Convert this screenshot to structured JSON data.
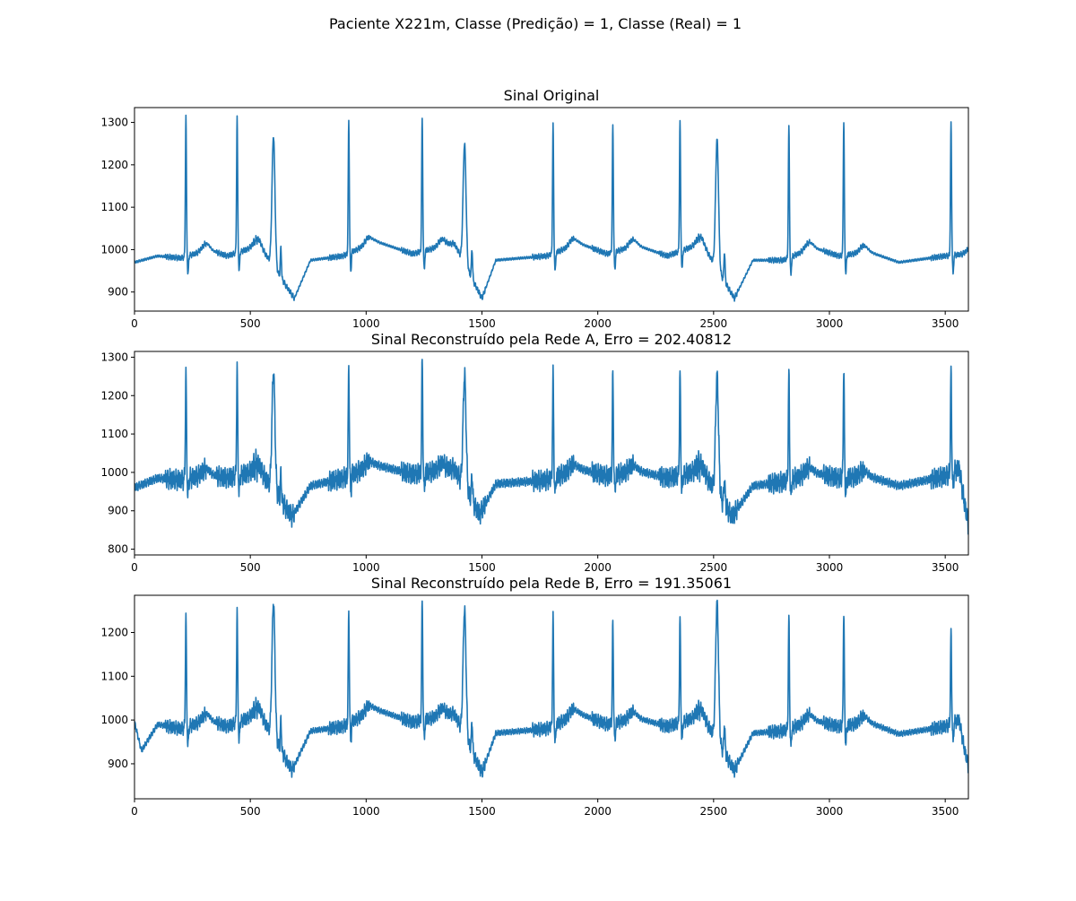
{
  "figure": {
    "suptitle": "Paciente X221m, Classe (Predição) = 1, Classe (Real) = 1"
  },
  "colors": {
    "line": "#1f77b4",
    "axes": "#000000",
    "background": "#ffffff"
  },
  "chart_data": [
    {
      "type": "line",
      "title": "Sinal Original",
      "xlabel": "",
      "ylabel": "",
      "xlim": [
        0,
        3600
      ],
      "ylim": [
        855,
        1335
      ],
      "xticks": [
        0,
        500,
        1000,
        1500,
        2000,
        2500,
        3000,
        3500
      ],
      "yticks": [
        900,
        1000,
        1100,
        1200,
        1300
      ],
      "grid": false,
      "series": [
        {
          "beats": [
            {
              "x": 222,
              "peak": 1313,
              "kind": "normal"
            },
            {
              "x": 443,
              "peak": 1311,
              "kind": "normal"
            },
            {
              "x": 600,
              "peak": 1268,
              "kind": "ectopic"
            },
            {
              "x": 925,
              "peak": 1303,
              "kind": "normal"
            },
            {
              "x": 1242,
              "peak": 1309,
              "kind": "normal"
            },
            {
              "x": 1425,
              "peak": 1249,
              "kind": "ectopic"
            },
            {
              "x": 1807,
              "peak": 1292,
              "kind": "normal"
            },
            {
              "x": 2065,
              "peak": 1291,
              "kind": "normal"
            },
            {
              "x": 2355,
              "peak": 1303,
              "kind": "normal"
            },
            {
              "x": 2515,
              "peak": 1259,
              "kind": "ectopic"
            },
            {
              "x": 2825,
              "peak": 1289,
              "kind": "normal"
            },
            {
              "x": 3062,
              "peak": 1302,
              "kind": "normal"
            },
            {
              "x": 3525,
              "peak": 1298,
              "kind": "normal"
            }
          ],
          "baseline": [
            {
              "x": 0,
              "y": 970
            },
            {
              "x": 100,
              "y": 985
            },
            {
              "x": 200,
              "y": 980
            },
            {
              "x": 320,
              "y": 1000
            },
            {
              "x": 400,
              "y": 985
            },
            {
              "x": 540,
              "y": 1010
            },
            {
              "x": 690,
              "y": 885
            },
            {
              "x": 760,
              "y": 975
            },
            {
              "x": 900,
              "y": 985
            },
            {
              "x": 1040,
              "y": 1020
            },
            {
              "x": 1200,
              "y": 990
            },
            {
              "x": 1380,
              "y": 1015
            },
            {
              "x": 1500,
              "y": 885
            },
            {
              "x": 1560,
              "y": 975
            },
            {
              "x": 1780,
              "y": 985
            },
            {
              "x": 1920,
              "y": 1015
            },
            {
              "x": 2040,
              "y": 990
            },
            {
              "x": 2170,
              "y": 1010
            },
            {
              "x": 2300,
              "y": 985
            },
            {
              "x": 2450,
              "y": 1015
            },
            {
              "x": 2590,
              "y": 885
            },
            {
              "x": 2670,
              "y": 975
            },
            {
              "x": 2800,
              "y": 975
            },
            {
              "x": 2930,
              "y": 1005
            },
            {
              "x": 3040,
              "y": 985
            },
            {
              "x": 3170,
              "y": 995
            },
            {
              "x": 3300,
              "y": 970
            },
            {
              "x": 3500,
              "y": 985
            },
            {
              "x": 3600,
              "y": 990
            }
          ],
          "noise": 3
        }
      ]
    },
    {
      "type": "line",
      "title": "Sinal Reconstruído pela Rede A, Erro = 202.40812",
      "xlabel": "",
      "ylabel": "",
      "xlim": [
        0,
        3600
      ],
      "ylim": [
        785,
        1315
      ],
      "xticks": [
        0,
        500,
        1000,
        1500,
        2000,
        2500,
        3000,
        3500
      ],
      "yticks": [
        800,
        900,
        1000,
        1100,
        1200,
        1300
      ],
      "grid": false,
      "series": [
        {
          "beats": [
            {
              "x": 222,
              "peak": 1258,
              "kind": "normal"
            },
            {
              "x": 443,
              "peak": 1270,
              "kind": "normal"
            },
            {
              "x": 600,
              "peak": 1262,
              "kind": "ectopic"
            },
            {
              "x": 925,
              "peak": 1271,
              "kind": "normal"
            },
            {
              "x": 1242,
              "peak": 1291,
              "kind": "normal"
            },
            {
              "x": 1425,
              "peak": 1253,
              "kind": "ectopic"
            },
            {
              "x": 1807,
              "peak": 1252,
              "kind": "normal"
            },
            {
              "x": 2065,
              "peak": 1251,
              "kind": "normal"
            },
            {
              "x": 2355,
              "peak": 1259,
              "kind": "normal"
            },
            {
              "x": 2515,
              "peak": 1249,
              "kind": "ectopic"
            },
            {
              "x": 2825,
              "peak": 1254,
              "kind": "normal"
            },
            {
              "x": 3062,
              "peak": 1267,
              "kind": "normal"
            },
            {
              "x": 3525,
              "peak": 1263,
              "kind": "normal"
            }
          ],
          "baseline": [
            {
              "x": 0,
              "y": 960
            },
            {
              "x": 100,
              "y": 985
            },
            {
              "x": 200,
              "y": 980
            },
            {
              "x": 320,
              "y": 995
            },
            {
              "x": 400,
              "y": 985
            },
            {
              "x": 540,
              "y": 1005
            },
            {
              "x": 680,
              "y": 885
            },
            {
              "x": 760,
              "y": 965
            },
            {
              "x": 900,
              "y": 985
            },
            {
              "x": 1040,
              "y": 1020
            },
            {
              "x": 1200,
              "y": 995
            },
            {
              "x": 1380,
              "y": 1010
            },
            {
              "x": 1490,
              "y": 890
            },
            {
              "x": 1560,
              "y": 970
            },
            {
              "x": 1780,
              "y": 980
            },
            {
              "x": 1920,
              "y": 1010
            },
            {
              "x": 2040,
              "y": 990
            },
            {
              "x": 2170,
              "y": 1005
            },
            {
              "x": 2300,
              "y": 985
            },
            {
              "x": 2450,
              "y": 1005
            },
            {
              "x": 2580,
              "y": 885
            },
            {
              "x": 2670,
              "y": 965
            },
            {
              "x": 2800,
              "y": 975
            },
            {
              "x": 2930,
              "y": 1000
            },
            {
              "x": 3040,
              "y": 985
            },
            {
              "x": 3170,
              "y": 990
            },
            {
              "x": 3300,
              "y": 965
            },
            {
              "x": 3500,
              "y": 990
            },
            {
              "x": 3560,
              "y": 1010
            },
            {
              "x": 3600,
              "y": 850
            }
          ],
          "noise": 12
        }
      ]
    },
    {
      "type": "line",
      "title": "Sinal Reconstruído pela Rede B, Erro = 191.35061",
      "xlabel": "",
      "ylabel": "",
      "xlim": [
        0,
        3600
      ],
      "ylim": [
        820,
        1285
      ],
      "xticks": [
        0,
        500,
        1000,
        1500,
        2000,
        2500,
        3000,
        3500
      ],
      "yticks": [
        900,
        1000,
        1100,
        1200
      ],
      "grid": false,
      "series": [
        {
          "beats": [
            {
              "x": 222,
              "peak": 1235,
              "kind": "normal"
            },
            {
              "x": 443,
              "peak": 1247,
              "kind": "normal"
            },
            {
              "x": 600,
              "peak": 1270,
              "kind": "ectopic"
            },
            {
              "x": 925,
              "peak": 1245,
              "kind": "normal"
            },
            {
              "x": 1242,
              "peak": 1270,
              "kind": "normal"
            },
            {
              "x": 1425,
              "peak": 1251,
              "kind": "ectopic"
            },
            {
              "x": 1807,
              "peak": 1232,
              "kind": "normal"
            },
            {
              "x": 2065,
              "peak": 1220,
              "kind": "normal"
            },
            {
              "x": 2355,
              "peak": 1233,
              "kind": "normal"
            },
            {
              "x": 2515,
              "peak": 1267,
              "kind": "ectopic"
            },
            {
              "x": 2825,
              "peak": 1231,
              "kind": "normal"
            },
            {
              "x": 3062,
              "peak": 1243,
              "kind": "normal"
            },
            {
              "x": 3525,
              "peak": 1201,
              "kind": "normal"
            }
          ],
          "baseline": [
            {
              "x": 0,
              "y": 995
            },
            {
              "x": 30,
              "y": 930
            },
            {
              "x": 100,
              "y": 990
            },
            {
              "x": 200,
              "y": 980
            },
            {
              "x": 320,
              "y": 1000
            },
            {
              "x": 400,
              "y": 985
            },
            {
              "x": 540,
              "y": 1015
            },
            {
              "x": 680,
              "y": 885
            },
            {
              "x": 760,
              "y": 975
            },
            {
              "x": 900,
              "y": 985
            },
            {
              "x": 1040,
              "y": 1025
            },
            {
              "x": 1200,
              "y": 995
            },
            {
              "x": 1380,
              "y": 1015
            },
            {
              "x": 1500,
              "y": 880
            },
            {
              "x": 1560,
              "y": 970
            },
            {
              "x": 1780,
              "y": 980
            },
            {
              "x": 1920,
              "y": 1015
            },
            {
              "x": 2040,
              "y": 990
            },
            {
              "x": 2170,
              "y": 1005
            },
            {
              "x": 2300,
              "y": 985
            },
            {
              "x": 2450,
              "y": 1010
            },
            {
              "x": 2590,
              "y": 885
            },
            {
              "x": 2670,
              "y": 970
            },
            {
              "x": 2800,
              "y": 975
            },
            {
              "x": 2930,
              "y": 1000
            },
            {
              "x": 3040,
              "y": 985
            },
            {
              "x": 3170,
              "y": 995
            },
            {
              "x": 3300,
              "y": 968
            },
            {
              "x": 3500,
              "y": 985
            },
            {
              "x": 3560,
              "y": 1000
            },
            {
              "x": 3600,
              "y": 880
            }
          ],
          "noise": 7
        }
      ]
    }
  ]
}
